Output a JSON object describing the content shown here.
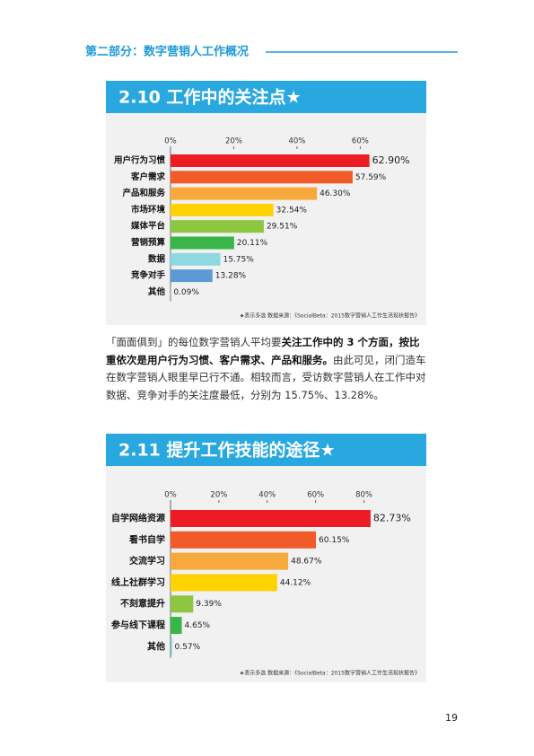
{
  "header": {
    "title": "第二部分：数字营销人工作概况"
  },
  "chart_data": [
    {
      "type": "bar",
      "orientation": "horizontal",
      "title": "2.10 工作中的关注点★",
      "categories": [
        "用户行为习惯",
        "客户需求",
        "产品和服务",
        "市场环境",
        "媒体平台",
        "营销预算",
        "数据",
        "竞争对手",
        "其他"
      ],
      "values": [
        62.9,
        57.59,
        46.3,
        32.54,
        29.51,
        20.11,
        15.75,
        13.28,
        0.09
      ],
      "value_labels": [
        "62.90%",
        "57.59%",
        "46.30%",
        "32.54%",
        "29.51%",
        "20.11%",
        "15.75%",
        "13.28%",
        "0.09%"
      ],
      "colors": [
        "#ed1c24",
        "#f15a29",
        "#f7a93c",
        "#ffd200",
        "#8dc63f",
        "#39b54a",
        "#8ed8e0",
        "#5b9bd5",
        "#a7a9ac"
      ],
      "xlim": [
        0,
        65
      ],
      "xticks": [
        {
          "value": 0,
          "label": "0%"
        },
        {
          "value": 20,
          "label": "20%"
        },
        {
          "value": 40,
          "label": "40%"
        },
        {
          "value": 60,
          "label": "60%"
        }
      ],
      "note": "★表示多选   数据来源：《SocialBeta：2015数字营销人工作生活现状报告》"
    },
    {
      "type": "bar",
      "orientation": "horizontal",
      "title": "2.11 提升工作技能的途径★",
      "categories": [
        "自学网络资源",
        "看书自学",
        "交流学习",
        "线上社群学习",
        "不刻意提升",
        "参与线下课程",
        "其他"
      ],
      "values": [
        82.73,
        60.15,
        48.67,
        44.12,
        9.39,
        4.65,
        0.57
      ],
      "value_labels": [
        "82.73%",
        "60.15%",
        "48.67%",
        "44.12%",
        "9.39%",
        "4.65%",
        "0.57%"
      ],
      "colors": [
        "#ed1c24",
        "#f15a29",
        "#f7a93c",
        "#ffd200",
        "#8dc63f",
        "#39b54a",
        "#6cc5c0"
      ],
      "xlim": [
        0,
        85
      ],
      "xticks": [
        {
          "value": 0,
          "label": "0%"
        },
        {
          "value": 20,
          "label": "20%"
        },
        {
          "value": 40,
          "label": "40%"
        },
        {
          "value": 60,
          "label": "60%"
        },
        {
          "value": 80,
          "label": "80%"
        }
      ],
      "note": "★表示多选   数据来源：《SocialBeta：2015数字营销人工作生活现状报告》"
    }
  ],
  "paragraph": [
    {
      "text": "「面面俱到」的每位数字营销人平均要",
      "bold": false
    },
    {
      "text": "关注工作中的 3 个方面，按比重依次是用户行为习惯、客户需求、产品和服务。",
      "bold": true
    },
    {
      "text": "由此可见，闭门造车在数字营销人眼里早已行不通。相较而言，受访数字营销人在工作中对数据、竞争对手的关注度最低，分别为 15.75%、13.28%。",
      "bold": false
    }
  ],
  "page_number": "19"
}
